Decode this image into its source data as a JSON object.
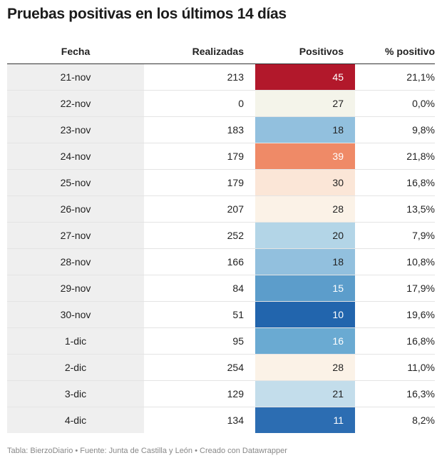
{
  "title": "Pruebas positivas en los últimos 14 días",
  "headers": [
    "Fecha",
    "Realizadas",
    "Positivos",
    "% positivo"
  ],
  "rows": [
    {
      "fecha": "21-nov",
      "realizadas": "213",
      "positivos": "45",
      "pct": "21,1%",
      "color": "#b2182b",
      "text": "#ffffff"
    },
    {
      "fecha": "22-nov",
      "realizadas": "0",
      "positivos": "27",
      "pct": "0,0%",
      "color": "#f4f4ea",
      "text": "#222222"
    },
    {
      "fecha": "23-nov",
      "realizadas": "183",
      "positivos": "18",
      "pct": "9,8%",
      "color": "#92c0de",
      "text": "#222222"
    },
    {
      "fecha": "24-nov",
      "realizadas": "179",
      "positivos": "39",
      "pct": "21,8%",
      "color": "#ef8a67",
      "text": "#ffffff"
    },
    {
      "fecha": "25-nov",
      "realizadas": "179",
      "positivos": "30",
      "pct": "16,8%",
      "color": "#fbe6d7",
      "text": "#222222"
    },
    {
      "fecha": "26-nov",
      "realizadas": "207",
      "positivos": "28",
      "pct": "13,5%",
      "color": "#fbf2e7",
      "text": "#222222"
    },
    {
      "fecha": "27-nov",
      "realizadas": "252",
      "positivos": "20",
      "pct": "7,9%",
      "color": "#b3d5e7",
      "text": "#222222"
    },
    {
      "fecha": "28-nov",
      "realizadas": "166",
      "positivos": "18",
      "pct": "10,8%",
      "color": "#92c0de",
      "text": "#222222"
    },
    {
      "fecha": "29-nov",
      "realizadas": "84",
      "positivos": "15",
      "pct": "17,9%",
      "color": "#5c9dcb",
      "text": "#ffffff"
    },
    {
      "fecha": "30-nov",
      "realizadas": "51",
      "positivos": "10",
      "pct": "19,6%",
      "color": "#2265ad",
      "text": "#ffffff"
    },
    {
      "fecha": "1-dic",
      "realizadas": "95",
      "positivos": "16",
      "pct": "16,8%",
      "color": "#6aaad2",
      "text": "#ffffff"
    },
    {
      "fecha": "2-dic",
      "realizadas": "254",
      "positivos": "28",
      "pct": "11,0%",
      "color": "#fbf2e7",
      "text": "#222222"
    },
    {
      "fecha": "3-dic",
      "realizadas": "129",
      "positivos": "21",
      "pct": "16,3%",
      "color": "#c3ddeb",
      "text": "#222222"
    },
    {
      "fecha": "4-dic",
      "realizadas": "134",
      "positivos": "11",
      "pct": "8,2%",
      "color": "#2c6db2",
      "text": "#ffffff"
    }
  ],
  "footer": "Tabla: BierzoDiario • Fuente: Junta de Castilla y León • Creado con Datawrapper",
  "chart_data": {
    "type": "table",
    "title": "Pruebas positivas en los últimos 14 días",
    "columns": [
      "Fecha",
      "Realizadas",
      "Positivos",
      "% positivo"
    ],
    "categories": [
      "21-nov",
      "22-nov",
      "23-nov",
      "24-nov",
      "25-nov",
      "26-nov",
      "27-nov",
      "28-nov",
      "29-nov",
      "30-nov",
      "1-dic",
      "2-dic",
      "3-dic",
      "4-dic"
    ],
    "series": [
      {
        "name": "Realizadas",
        "values": [
          213,
          0,
          183,
          179,
          179,
          207,
          252,
          166,
          84,
          51,
          95,
          254,
          129,
          134
        ]
      },
      {
        "name": "Positivos",
        "values": [
          45,
          27,
          18,
          39,
          30,
          28,
          20,
          18,
          15,
          10,
          16,
          28,
          21,
          11
        ]
      },
      {
        "name": "% positivo",
        "values": [
          21.1,
          0.0,
          9.8,
          21.8,
          16.8,
          13.5,
          7.9,
          10.8,
          17.9,
          19.6,
          16.8,
          11.0,
          16.3,
          8.2
        ]
      }
    ]
  }
}
